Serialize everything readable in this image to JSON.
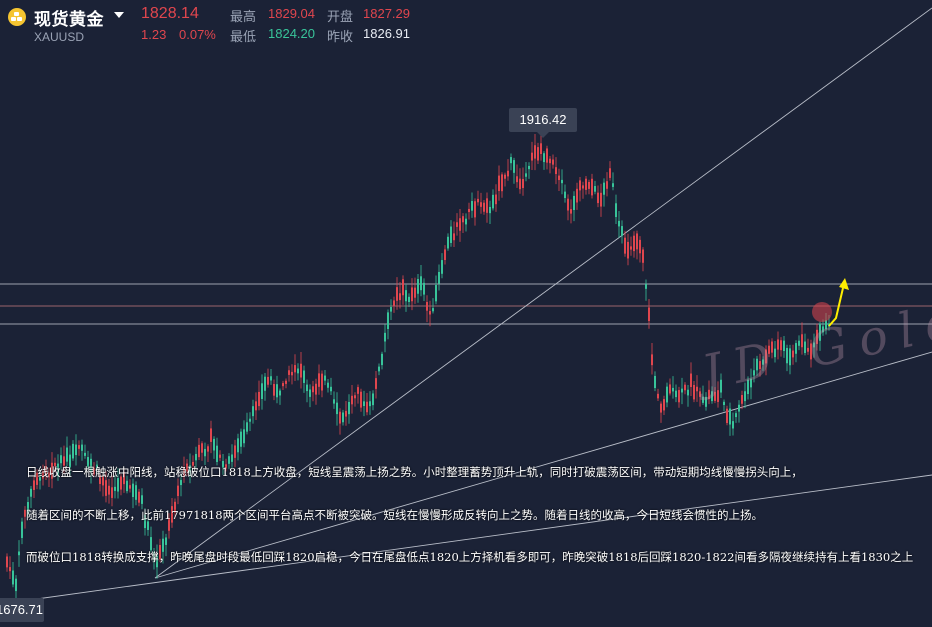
{
  "header": {
    "title": "现货黄金",
    "symbol": "XAUUSD",
    "price": "1828.14",
    "change_abs": "1.23",
    "change_pct": "0.07%",
    "high_label": "最高",
    "high_value": "1829.04",
    "low_label": "最低",
    "low_value": "1824.20",
    "open_label": "开盘",
    "open_value": "1827.29",
    "prevclose_label": "昨收",
    "prevclose_value": "1826.91"
  },
  "colors": {
    "background": "#1b2236",
    "up": "#e0464e",
    "down": "#38c49a",
    "accent": "#f5c531",
    "arrow": "#ffee00"
  },
  "icons": {
    "logo": "gold-coin-icon",
    "dropdown": "caret-down-icon",
    "arrow": "up-arrow-icon"
  },
  "chart": {
    "peak_label": "1916.42",
    "low_label": "1676.71"
  },
  "chart_data": {
    "type": "candlestick",
    "title": "",
    "series_label": "XAUUSD",
    "high_marker": 1916.42,
    "low_marker": 1676.71,
    "horizontal_levels": [
      1832,
      1828,
      1818
    ],
    "trend_lines": [
      "support-rising-long",
      "support-rising-short",
      "resistance-diagonal"
    ],
    "projection": "up"
  },
  "notes": [
    "日线收盘一根触涨中阳线，站稳破位口1818上方收盘，短线呈震荡上扬之势。小时整理蓄势顶升上轨，同时打破震荡区间，带动短期均线慢慢拐头向上，",
    "随着区间的不断上移，此前17971818两个区间平台高点不断被突破。短线在慢慢形成反转向上之势。随着日线的收高，今日短线会惯性的上扬。",
    "而破位口1818转换成支撑，昨晚尾盘时段最低回踩1820启稳，今日在尾盘低点1820上方择机看多即可，昨晚突破1818后回踩1820-1822间看多隔夜继续持有上看1830之上"
  ]
}
